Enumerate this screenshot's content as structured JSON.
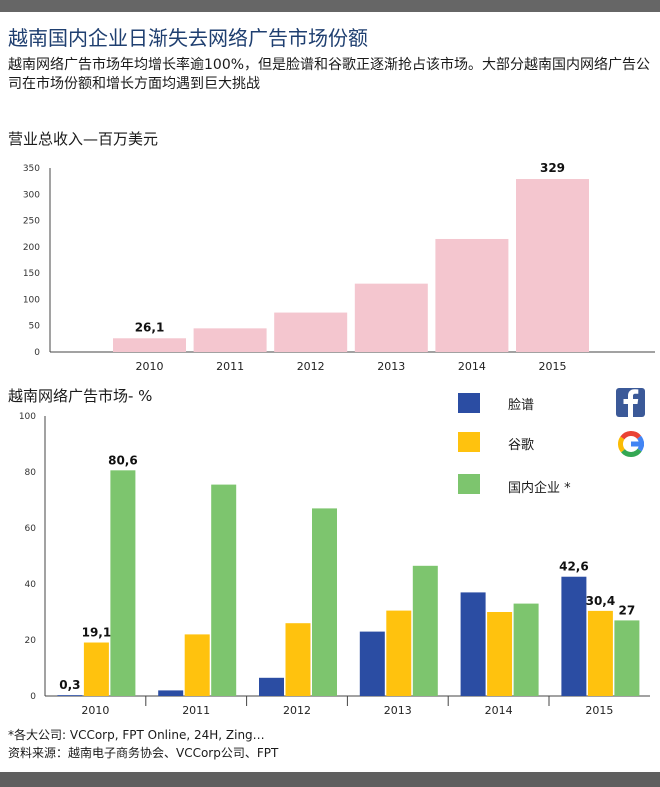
{
  "title": "越南国内企业日渐失去网络广告市场份额",
  "subtitle": "越南网络广告市场年均增长率逾100%，但是脸谱和谷歌正逐渐抢占该市场。大部分越南国内网络广告公司在市场份额和增长方面均遇到巨大挑战",
  "colors": {
    "revenue_bar": "#f4c6cf",
    "facebook": "#2b4da3",
    "google": "#ffc20e",
    "domestic": "#7dc56e"
  },
  "legend": {
    "facebook_label": "脸谱",
    "google_label": "谷歌",
    "domestic_label": "国内企业 *",
    "facebook_icon": "facebook-logo",
    "google_icon": "google-logo"
  },
  "footnotes": {
    "note1": "*各大公司: VCCorp, FPT Online, 24H, Zing…",
    "note2": "资料来源：越南电子商务协会、VCCorp公司、FPT"
  },
  "chart_data": [
    {
      "type": "bar",
      "title": "营业总收入—百万美元",
      "categories": [
        "2010",
        "2011",
        "2012",
        "2013",
        "2014",
        "2015"
      ],
      "values": [
        26.1,
        45,
        75,
        130,
        215,
        329
      ],
      "data_labels": [
        "26,1",
        "",
        "",
        "",
        "",
        "329"
      ],
      "yticks": [
        "0",
        "50",
        "100",
        "150",
        "200",
        "250",
        "300",
        "350"
      ],
      "ylim": [
        0,
        350
      ],
      "grid": false
    },
    {
      "type": "bar",
      "title": "越南网络广告市场- %",
      "categories": [
        "2010",
        "2011",
        "2012",
        "2013",
        "2014",
        "2015"
      ],
      "series": [
        {
          "name": "脸谱",
          "values": [
            0.3,
            2,
            6.5,
            23,
            37,
            42.6
          ],
          "labels": [
            "0,3",
            "",
            "",
            "",
            "",
            "42,6"
          ]
        },
        {
          "name": "谷歌",
          "values": [
            19.1,
            22,
            26,
            30.5,
            30,
            30.4
          ],
          "labels": [
            "19,1",
            "",
            "",
            "",
            "",
            "30,4"
          ]
        },
        {
          "name": "国内企业 *",
          "values": [
            80.6,
            75.5,
            67,
            46.5,
            33,
            27
          ],
          "labels": [
            "80,6",
            "",
            "",
            "",
            "",
            "27"
          ]
        }
      ],
      "yticks": [
        "0",
        "20",
        "40",
        "60",
        "80",
        "100"
      ],
      "ylim": [
        0,
        100
      ],
      "legend_position": "top-right",
      "grid": false
    }
  ]
}
